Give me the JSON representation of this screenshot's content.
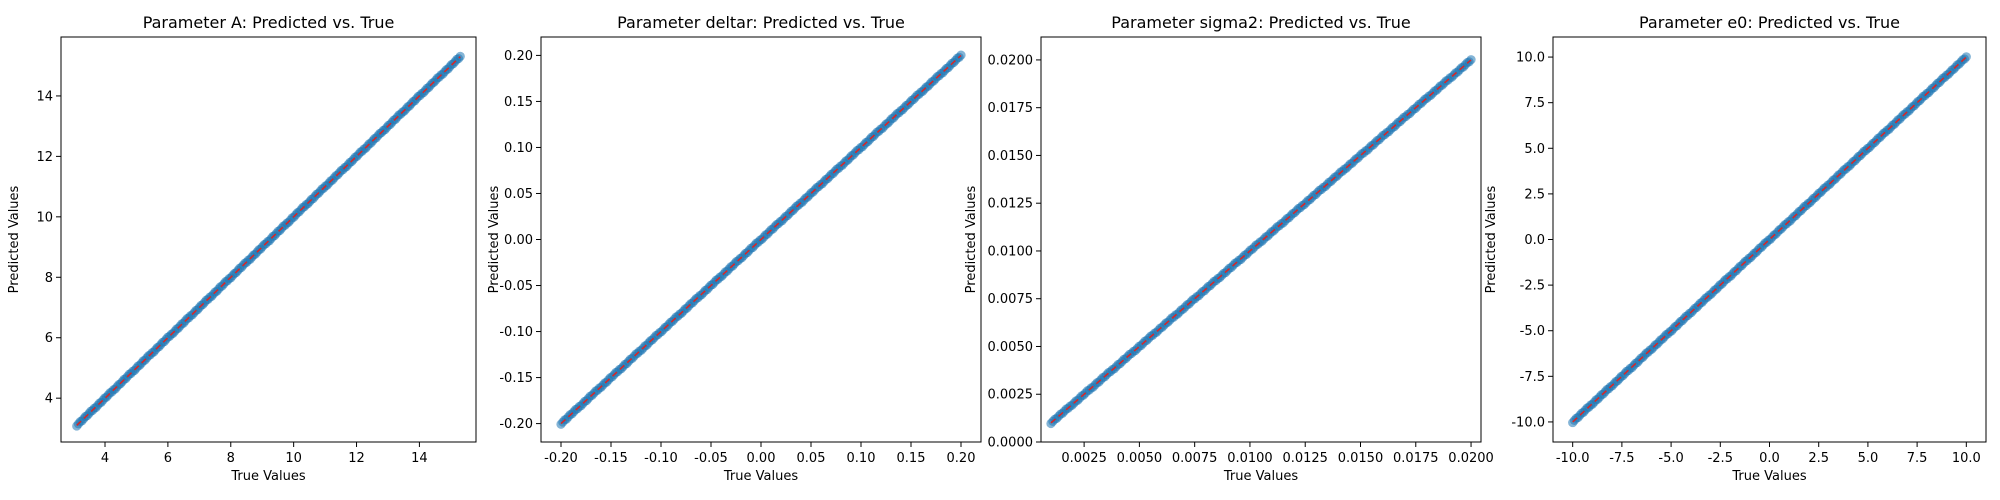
{
  "chart_data": [
    {
      "type": "scatter",
      "title": "Parameter A: Predicted vs. True",
      "xlabel": "True Values",
      "ylabel": "Predicted Values",
      "xlim": [
        2.6,
        15.8
      ],
      "ylim": [
        2.55,
        15.95
      ],
      "xticks": [
        4,
        6,
        8,
        10,
        12,
        14
      ],
      "yticks": [
        4,
        6,
        8,
        10,
        12,
        14
      ],
      "xtick_labels": [
        "4",
        "6",
        "8",
        "10",
        "12",
        "14"
      ],
      "ytick_labels": [
        "4",
        "6",
        "8",
        "10",
        "12",
        "14"
      ],
      "range": [
        3.1,
        15.3
      ],
      "reference_line": "y = x",
      "grid": false
    },
    {
      "type": "scatter",
      "title": "Parameter deltar: Predicted vs. True",
      "xlabel": "True Values",
      "ylabel": "Predicted Values",
      "xlim": [
        -0.22,
        0.22
      ],
      "ylim": [
        -0.22,
        0.22
      ],
      "xticks": [
        -0.2,
        -0.15,
        -0.1,
        -0.05,
        0.0,
        0.05,
        0.1,
        0.15,
        0.2
      ],
      "yticks": [
        -0.2,
        -0.15,
        -0.1,
        -0.05,
        0.0,
        0.05,
        0.1,
        0.15,
        0.2
      ],
      "xtick_labels": [
        "-0.20",
        "-0.15",
        "-0.10",
        "-0.05",
        "0.00",
        "0.05",
        "0.10",
        "0.15",
        "0.20"
      ],
      "ytick_labels": [
        "-0.20",
        "-0.15",
        "-0.10",
        "-0.05",
        "0.00",
        "0.05",
        "0.10",
        "0.15",
        "0.20"
      ],
      "range": [
        -0.2,
        0.2
      ],
      "reference_line": "y = x",
      "grid": false
    },
    {
      "type": "scatter",
      "title": "Parameter sigma2: Predicted vs. True",
      "xlabel": "True Values",
      "ylabel": "Predicted Values",
      "xlim": [
        0.00055,
        0.02045
      ],
      "ylim": [
        0.0,
        0.0212
      ],
      "xticks": [
        0.0025,
        0.005,
        0.0075,
        0.01,
        0.0125,
        0.015,
        0.0175,
        0.02
      ],
      "yticks": [
        0.0,
        0.0025,
        0.005,
        0.0075,
        0.01,
        0.0125,
        0.015,
        0.0175,
        0.02
      ],
      "xtick_labels": [
        "0.0025",
        "0.0050",
        "0.0075",
        "0.0100",
        "0.0125",
        "0.0150",
        "0.0175",
        "0.0200"
      ],
      "ytick_labels": [
        "0.0000",
        "0.0025",
        "0.0050",
        "0.0075",
        "0.0100",
        "0.0125",
        "0.0150",
        "0.0175",
        "0.0200"
      ],
      "range": [
        0.001,
        0.02
      ],
      "reference_line": "y = x",
      "grid": false
    },
    {
      "type": "scatter",
      "title": "Parameter e0: Predicted vs. True",
      "xlabel": "True Values",
      "ylabel": "Predicted Values",
      "xlim": [
        -11.0,
        11.0
      ],
      "ylim": [
        -11.1,
        11.1
      ],
      "xticks": [
        -10,
        -7.5,
        -5,
        -2.5,
        0,
        2.5,
        5,
        7.5,
        10
      ],
      "yticks": [
        -10,
        -7.5,
        -5,
        -2.5,
        0,
        2.5,
        5,
        7.5,
        10
      ],
      "xtick_labels": [
        "-10.0",
        "-7.5",
        "-5.0",
        "-2.5",
        "0.0",
        "2.5",
        "5.0",
        "7.5",
        "10.0"
      ],
      "ytick_labels": [
        "-10.0",
        "-7.5",
        "-5.0",
        "-2.5",
        "0.0",
        "2.5",
        "5.0",
        "7.5",
        "10.0"
      ],
      "range": [
        -10.0,
        10.0
      ],
      "reference_line": "y = x",
      "grid": false
    }
  ],
  "colors": {
    "points": "#1f77b4",
    "reference_line": "#d62728",
    "axes": "#000000"
  }
}
